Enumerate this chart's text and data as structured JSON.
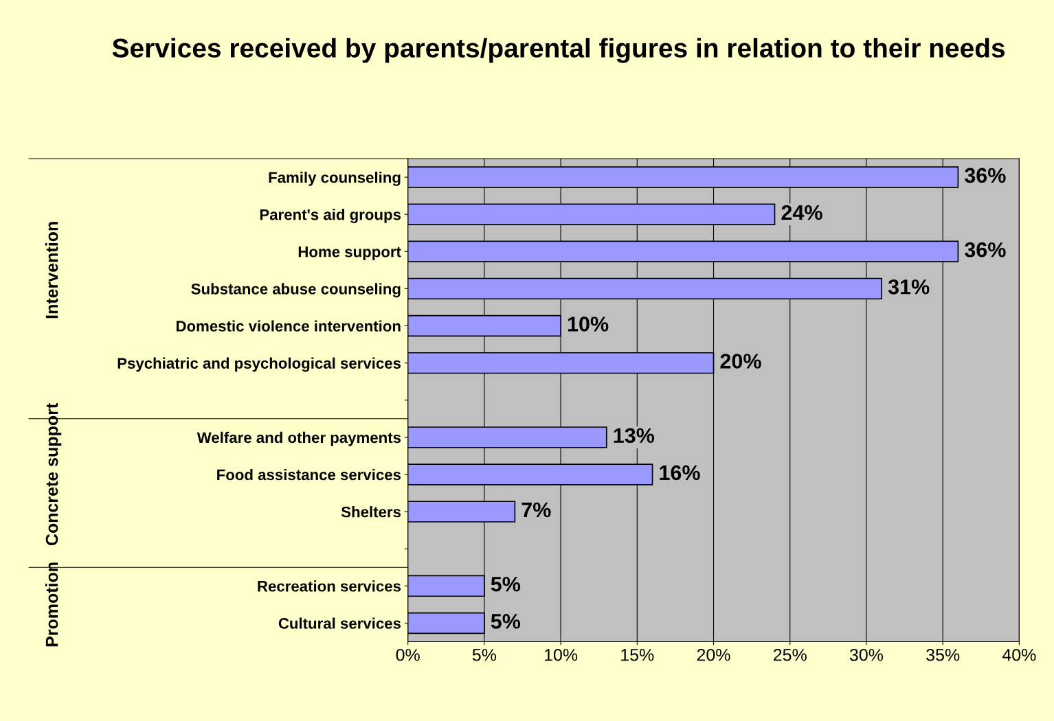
{
  "chart_data": {
    "type": "bar",
    "orientation": "horizontal",
    "title": "Services received by parents/parental figures in relation to their needs",
    "categories": [
      "Family counseling",
      "Parent's aid groups",
      "Home support",
      "Substance abuse counseling",
      "Domestic violence intervention",
      "Psychiatric and psychological services",
      null,
      "Welfare and other payments",
      "Food assistance services",
      "Shelters",
      null,
      "Recreation services",
      "Cultural services"
    ],
    "values": [
      36,
      24,
      36,
      31,
      10,
      20,
      null,
      13,
      16,
      7,
      null,
      5,
      5
    ],
    "value_labels": [
      "36%",
      "24%",
      "36%",
      "31%",
      "10%",
      "20%",
      null,
      "13%",
      "16%",
      "7%",
      null,
      "5%",
      "5%"
    ],
    "color": "#9999ff",
    "xlim": [
      0,
      40
    ],
    "xticks": [
      {
        "value": 0,
        "label": "0%"
      },
      {
        "value": 5,
        "label": "5%"
      },
      {
        "value": 10,
        "label": "10%"
      },
      {
        "value": 15,
        "label": "15%"
      },
      {
        "value": 20,
        "label": "20%"
      },
      {
        "value": 25,
        "label": "25%"
      },
      {
        "value": 30,
        "label": "30%"
      },
      {
        "value": 35,
        "label": "35%"
      },
      {
        "value": 40,
        "label": "40%"
      }
    ],
    "grid": "x",
    "annotations": [
      "Intervention",
      "Concrete support",
      "Promotion"
    ]
  }
}
